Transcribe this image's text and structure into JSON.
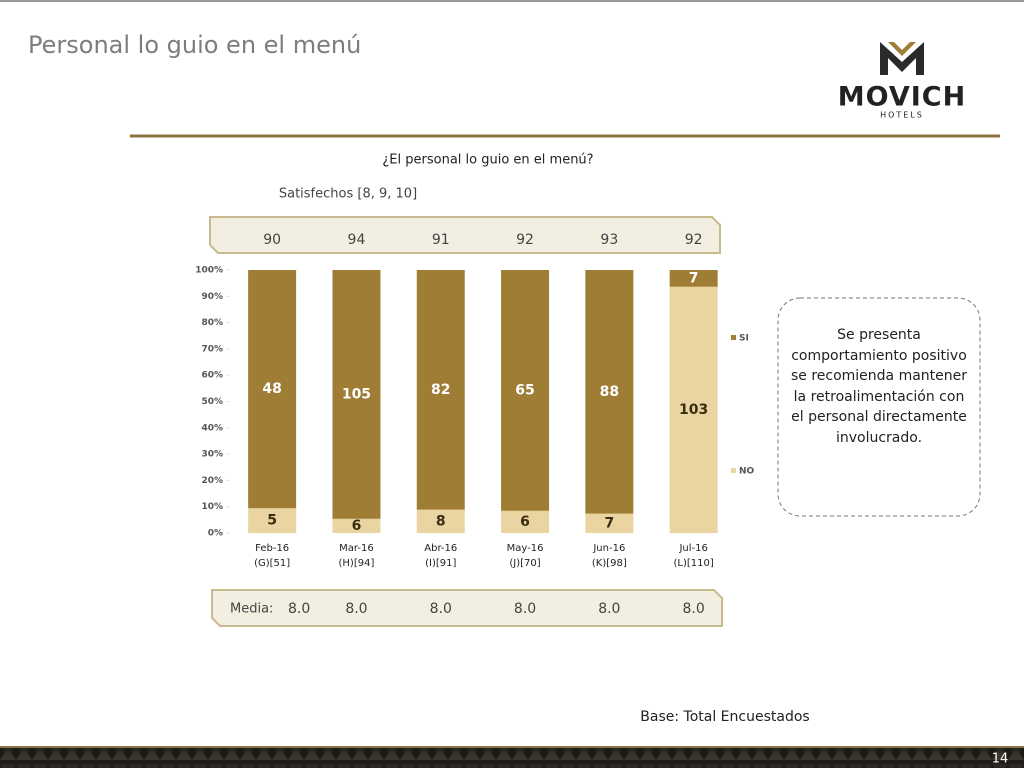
{
  "header": {
    "title": "Personal lo guio en el menú",
    "logo": "MOVICH",
    "logo_sub": "HOTELS"
  },
  "chart_data": {
    "type": "bar",
    "stacked": "percent",
    "title": "¿El personal lo guio en el menú?",
    "categories": [
      [
        "Feb-16",
        "(G)[51]"
      ],
      [
        "Mar-16",
        "(H)[94]"
      ],
      [
        "Abr-16",
        "(I)[91]"
      ],
      [
        "May-16",
        "(J)[70]"
      ],
      [
        "Jun-16",
        "(K)[98]"
      ],
      [
        "Jul-16",
        "(L)[110]"
      ]
    ],
    "series": [
      {
        "name": "NO",
        "color": "#e9d4a2",
        "label_color": "#3a2e10",
        "values": [
          5,
          6,
          8,
          6,
          7,
          103
        ]
      },
      {
        "name": "SI",
        "color": "#a07d35",
        "label_color": "#ffffff",
        "values": [
          48,
          105,
          82,
          65,
          88,
          7
        ]
      }
    ],
    "ylim": [
      0,
      100
    ],
    "yticks": [
      {
        "value": 0,
        "label": "0%"
      },
      {
        "value": 10,
        "label": "10%"
      },
      {
        "value": 20,
        "label": "20%"
      },
      {
        "value": 30,
        "label": "30%"
      },
      {
        "value": 40,
        "label": "40%"
      },
      {
        "value": 50,
        "label": "50%"
      },
      {
        "value": 60,
        "label": "60%"
      },
      {
        "value": 70,
        "label": "70%"
      },
      {
        "value": 80,
        "label": "80%"
      },
      {
        "value": 90,
        "label": "90%"
      },
      {
        "value": 100,
        "label": "100%"
      }
    ],
    "satisfied": {
      "label": "Satisfechos [8, 9, 10]",
      "values": [
        90,
        94,
        91,
        92,
        93,
        92
      ]
    },
    "media": {
      "label": "Media:",
      "values": [
        8,
        8,
        8,
        8,
        8,
        8
      ],
      "value_labels": [
        "8.0",
        "8.0",
        "8.0",
        "8.0",
        "8.0",
        "8.0"
      ]
    }
  },
  "note": "Se presenta comportamiento positivo se recomienda mantener la retroalimentación con el personal directamente involucrado.",
  "footer": {
    "base": "Base: Total Encuestados",
    "page": "14"
  }
}
